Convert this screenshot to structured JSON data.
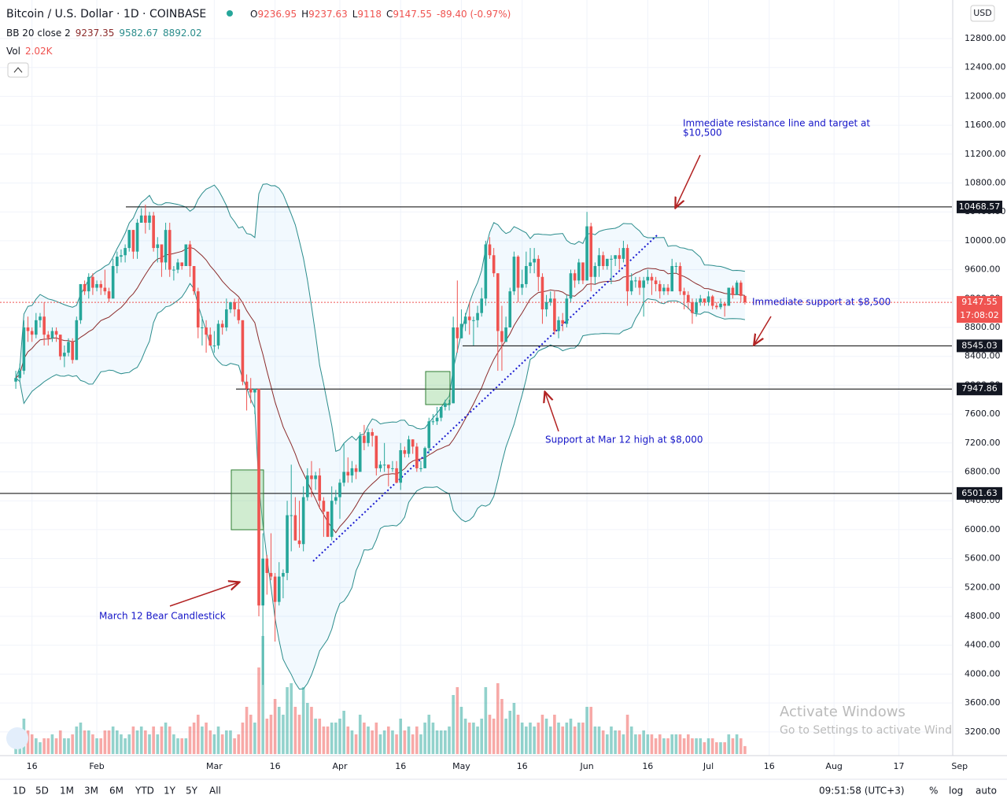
{
  "chart_data": {
    "type": "candlestick",
    "title": "Bitcoin / U.S. Dollar · 1D · COINBASE",
    "ohlc_labels": [
      "O",
      "H",
      "L",
      "C"
    ],
    "change": "-89.40 (-0.97%)",
    "indicator": {
      "name": "BB 20 close 2",
      "values": [
        9237.35,
        9582.67,
        8892.02
      ],
      "length": 20,
      "mult": 2,
      "upper_color": "#2a8c8c",
      "basis_color": "#8b2b2b",
      "fill": "rgba(33,150,243,0.06)"
    },
    "currency": "USD",
    "up_color": "#26a69a",
    "down_color": "#ef5350",
    "candles": [
      [
        8050,
        8200,
        7950,
        8100
      ],
      [
        8100,
        8300,
        8050,
        8200
      ],
      [
        8200,
        8900,
        8150,
        8800
      ],
      [
        8800,
        8950,
        8600,
        8750
      ],
      [
        8750,
        8800,
        8600,
        8700
      ],
      [
        8700,
        9000,
        8650,
        8900
      ],
      [
        8900,
        9000,
        8800,
        8950
      ],
      [
        8950,
        9150,
        8550,
        8700
      ],
      [
        8700,
        8750,
        8550,
        8650
      ],
      [
        8650,
        8800,
        8600,
        8750
      ],
      [
        8750,
        8800,
        8600,
        8700
      ],
      [
        8700,
        8700,
        8350,
        8400
      ],
      [
        8400,
        8550,
        8250,
        8450
      ],
      [
        8450,
        8650,
        8400,
        8600
      ],
      [
        8600,
        8650,
        8300,
        8350
      ],
      [
        8350,
        8950,
        8350,
        8900
      ],
      [
        8900,
        9400,
        8850,
        9400
      ],
      [
        9400,
        9450,
        9250,
        9300
      ],
      [
        9300,
        9550,
        9200,
        9500
      ],
      [
        9500,
        9550,
        9250,
        9350
      ],
      [
        9350,
        9450,
        9300,
        9400
      ],
      [
        9400,
        9450,
        9250,
        9350
      ],
      [
        9350,
        9600,
        9250,
        9300
      ],
      [
        9300,
        9350,
        9150,
        9200
      ],
      [
        9200,
        9750,
        9200,
        9650
      ],
      [
        9650,
        9850,
        9550,
        9780
      ],
      [
        9780,
        9880,
        9700,
        9800
      ],
      [
        9800,
        9950,
        9700,
        9900
      ],
      [
        9900,
        10150,
        9850,
        10150
      ],
      [
        10150,
        10150,
        9750,
        9850
      ],
      [
        9850,
        10300,
        9750,
        10250
      ],
      [
        10250,
        10450,
        10250,
        10350
      ],
      [
        10350,
        10500,
        10100,
        10250
      ],
      [
        10250,
        10400,
        10150,
        10350
      ],
      [
        10350,
        10400,
        9850,
        9900
      ],
      [
        9900,
        10050,
        9700,
        9950
      ],
      [
        9950,
        9950,
        9500,
        9700
      ],
      [
        9700,
        10250,
        9600,
        10150
      ],
      [
        10150,
        10250,
        9500,
        9600
      ],
      [
        9600,
        9650,
        9450,
        9600
      ],
      [
        9600,
        9750,
        9550,
        9700
      ],
      [
        9700,
        9700,
        9600,
        9650
      ],
      [
        9650,
        9950,
        9650,
        9950
      ],
      [
        9950,
        10000,
        9500,
        9650
      ],
      [
        9650,
        9650,
        9250,
        9300
      ],
      [
        9300,
        9350,
        8650,
        8800
      ],
      [
        8800,
        8950,
        8550,
        8800
      ],
      [
        8800,
        8900,
        8450,
        8700
      ],
      [
        8700,
        8800,
        8550,
        8550
      ],
      [
        8550,
        8750,
        8450,
        8550
      ],
      [
        8550,
        8900,
        8500,
        8850
      ],
      [
        8850,
        8900,
        8700,
        8800
      ],
      [
        8800,
        9200,
        8750,
        9050
      ],
      [
        9050,
        9150,
        9000,
        9150
      ],
      [
        9150,
        9200,
        8950,
        9050
      ],
      [
        9050,
        9200,
        8850,
        8900
      ],
      [
        8900,
        8900,
        8000,
        8050
      ],
      [
        8050,
        8150,
        7650,
        7950
      ],
      [
        7950,
        8100,
        7750,
        7900
      ],
      [
        7900,
        7950,
        7600,
        7950
      ],
      [
        7950,
        7950,
        4800,
        4950
      ],
      [
        4950,
        5950,
        3850,
        5600
      ],
      [
        5600,
        5650,
        5100,
        5400
      ],
      [
        5400,
        5950,
        5300,
        5350
      ],
      [
        5350,
        5400,
        4450,
        5000
      ],
      [
        5000,
        5550,
        4950,
        5350
      ],
      [
        5350,
        5450,
        5050,
        5400
      ],
      [
        5400,
        6400,
        5300,
        6200
      ],
      [
        6200,
        6900,
        5700,
        6200
      ],
      [
        6200,
        6450,
        5850,
        5850
      ],
      [
        5850,
        6400,
        5750,
        5800
      ],
      [
        5800,
        6600,
        5700,
        6450
      ],
      [
        6450,
        6850,
        6400,
        6750
      ],
      [
        6750,
        6950,
        6450,
        6700
      ],
      [
        6700,
        6800,
        6550,
        6750
      ],
      [
        6750,
        6850,
        6300,
        6400
      ],
      [
        6400,
        6450,
        5900,
        6250
      ],
      [
        6250,
        6250,
        5900,
        5900
      ],
      [
        5900,
        6600,
        5850,
        6400
      ],
      [
        6400,
        6550,
        6350,
        6450
      ],
      [
        6450,
        6700,
        6150,
        6650
      ],
      [
        6650,
        7200,
        6600,
        6800
      ],
      [
        6800,
        7000,
        6650,
        6750
      ],
      [
        6750,
        6950,
        6650,
        6850
      ],
      [
        6850,
        6900,
        6700,
        6800
      ],
      [
        6800,
        7350,
        6800,
        7300
      ],
      [
        7300,
        7450,
        7100,
        7200
      ],
      [
        7200,
        7400,
        7150,
        7350
      ],
      [
        7350,
        7400,
        7150,
        7300
      ],
      [
        7300,
        7300,
        6750,
        6850
      ],
      [
        6850,
        6950,
        6800,
        6900
      ],
      [
        6900,
        7200,
        6800,
        6900
      ],
      [
        6900,
        6900,
        6600,
        6850
      ],
      [
        6850,
        6950,
        6800,
        6850
      ],
      [
        6850,
        6950,
        6650,
        6650
      ],
      [
        6650,
        7200,
        6550,
        7100
      ],
      [
        7100,
        7150,
        7000,
        7050
      ],
      [
        7050,
        7300,
        7000,
        7250
      ],
      [
        7250,
        7250,
        7050,
        7150
      ],
      [
        7150,
        7200,
        6800,
        6850
      ],
      [
        6850,
        6950,
        6800,
        6850
      ],
      [
        6850,
        7150,
        6850,
        7130
      ],
      [
        7130,
        7550,
        7050,
        7500
      ],
      [
        7500,
        7600,
        7450,
        7500
      ],
      [
        7500,
        7700,
        7450,
        7550
      ],
      [
        7550,
        7700,
        7500,
        7700
      ],
      [
        7700,
        7800,
        7650,
        7750
      ],
      [
        7750,
        7800,
        7650,
        7750
      ],
      [
        7750,
        8950,
        7750,
        8800
      ],
      [
        8800,
        9450,
        8450,
        8650
      ],
      [
        8650,
        9050,
        8650,
        8850
      ],
      [
        8850,
        9000,
        8750,
        8950
      ],
      [
        8950,
        9150,
        8700,
        8900
      ],
      [
        8900,
        8950,
        8550,
        8900
      ],
      [
        8900,
        9100,
        8800,
        9000
      ],
      [
        9000,
        9350,
        8950,
        9200
      ],
      [
        9200,
        10000,
        9100,
        9950
      ],
      [
        9950,
        10050,
        9750,
        9800
      ],
      [
        9800,
        9900,
        9500,
        9550
      ],
      [
        9550,
        9550,
        8200,
        8750
      ],
      [
        8750,
        9100,
        8200,
        8600
      ],
      [
        8600,
        8950,
        8600,
        8800
      ],
      [
        8800,
        9350,
        8800,
        9300
      ],
      [
        9300,
        9850,
        9250,
        9780
      ],
      [
        9780,
        9800,
        9150,
        9350
      ],
      [
        9350,
        9600,
        9250,
        9400
      ],
      [
        9400,
        9850,
        9350,
        9650
      ],
      [
        9650,
        9900,
        9550,
        9700
      ],
      [
        9700,
        9900,
        9550,
        9750
      ],
      [
        9750,
        9800,
        9300,
        9500
      ],
      [
        9500,
        9550,
        8850,
        9050
      ],
      [
        9050,
        9250,
        8950,
        9150
      ],
      [
        9150,
        9300,
        9100,
        9200
      ],
      [
        9200,
        9300,
        8700,
        8750
      ],
      [
        8750,
        8950,
        8650,
        8900
      ],
      [
        8900,
        9000,
        8750,
        8850
      ],
      [
        8850,
        9250,
        8800,
        9200
      ],
      [
        9200,
        9600,
        9150,
        9550
      ],
      [
        9550,
        9600,
        9350,
        9450
      ],
      [
        9450,
        9750,
        9400,
        9700
      ],
      [
        9700,
        9700,
        9400,
        9450
      ],
      [
        9450,
        10400,
        9450,
        10200
      ],
      [
        10200,
        10250,
        9300,
        9500
      ],
      [
        9500,
        9700,
        9400,
        9650
      ],
      [
        9650,
        9900,
        9500,
        9800
      ],
      [
        9800,
        9850,
        9600,
        9650
      ],
      [
        9650,
        9750,
        9600,
        9750
      ],
      [
        9750,
        9800,
        9400,
        9750
      ],
      [
        9750,
        9800,
        9650,
        9800
      ],
      [
        9800,
        9900,
        9600,
        9750
      ],
      [
        9750,
        10000,
        9700,
        9900
      ],
      [
        9900,
        9950,
        9100,
        9300
      ],
      [
        9300,
        9550,
        9250,
        9450
      ],
      [
        9450,
        9500,
        9350,
        9450
      ],
      [
        9450,
        9500,
        9250,
        9350
      ],
      [
        9350,
        9500,
        8950,
        9450
      ],
      [
        9450,
        9600,
        9400,
        9500
      ],
      [
        9500,
        9550,
        9250,
        9450
      ],
      [
        9450,
        9500,
        9300,
        9400
      ],
      [
        9400,
        9450,
        9200,
        9300
      ],
      [
        9300,
        9400,
        9250,
        9350
      ],
      [
        9350,
        9400,
        9250,
        9300
      ],
      [
        9300,
        9750,
        9300,
        9650
      ],
      [
        9650,
        9700,
        9550,
        9650
      ],
      [
        9650,
        9700,
        9250,
        9300
      ],
      [
        9300,
        9350,
        9050,
        9250
      ],
      [
        9250,
        9300,
        9050,
        9150
      ],
      [
        9150,
        9200,
        8850,
        9000
      ],
      [
        9000,
        9200,
        8950,
        9150
      ],
      [
        9150,
        9250,
        9100,
        9200
      ],
      [
        9200,
        9200,
        9100,
        9150
      ],
      [
        9150,
        9300,
        9100,
        9230
      ],
      [
        9230,
        9250,
        9050,
        9100
      ],
      [
        9100,
        9150,
        9050,
        9080
      ],
      [
        9080,
        9200,
        9050,
        9130
      ],
      [
        9130,
        9150,
        8950,
        9100
      ],
      [
        9100,
        9350,
        9100,
        9350
      ],
      [
        9350,
        9380,
        9200,
        9250
      ],
      [
        9250,
        9450,
        9250,
        9420
      ],
      [
        9420,
        9450,
        9150,
        9236.95
      ],
      [
        9236.95,
        9237.63,
        9118,
        9147.55
      ]
    ],
    "volume": {
      "name": "Vol",
      "last_label": "2.02K",
      "values": [
        5,
        6,
        9,
        6,
        5,
        4,
        3,
        4,
        4,
        5,
        4,
        6,
        4,
        4,
        5,
        7,
        8,
        6,
        6,
        5,
        4,
        4,
        6,
        6,
        7,
        6,
        5,
        4,
        5,
        7,
        6,
        7,
        6,
        5,
        7,
        5,
        7,
        8,
        7,
        5,
        4,
        4,
        4,
        7,
        8,
        10,
        7,
        8,
        6,
        5,
        7,
        5,
        6,
        6,
        4,
        5,
        8,
        12,
        10,
        8,
        22,
        30,
        9,
        10,
        14,
        12,
        10,
        17,
        18,
        12,
        10,
        17,
        13,
        12,
        9,
        9,
        7,
        7,
        8,
        8,
        9,
        11,
        7,
        6,
        5,
        10,
        8,
        7,
        6,
        8,
        5,
        6,
        7,
        6,
        5,
        9,
        6,
        7,
        5,
        7,
        5,
        8,
        10,
        8,
        6,
        6,
        6,
        7,
        15,
        17,
        12,
        9,
        8,
        8,
        7,
        9,
        17,
        10,
        9,
        18,
        14,
        9,
        11,
        13,
        10,
        8,
        7,
        8,
        7,
        8,
        10,
        9,
        7,
        10,
        8,
        7,
        8,
        9,
        7,
        8,
        8,
        12,
        12,
        7,
        7,
        6,
        5,
        7,
        6,
        6,
        5,
        10,
        7,
        5,
        5,
        6,
        5,
        5,
        4,
        5,
        4,
        4,
        5,
        5,
        5,
        4,
        5,
        4,
        4,
        4,
        3,
        4,
        4,
        3,
        3,
        3,
        5,
        4,
        5,
        4,
        2.02
      ]
    },
    "xlim": [
      -3.9,
      231.1
    ],
    "xticks": [
      {
        "value": 4,
        "label": "16"
      },
      {
        "value": 20,
        "label": "Feb"
      },
      {
        "value": 49,
        "label": "Mar"
      },
      {
        "value": 64,
        "label": "16"
      },
      {
        "value": 80,
        "label": "Apr"
      },
      {
        "value": 95,
        "label": "16"
      },
      {
        "value": 110,
        "label": "May"
      },
      {
        "value": 125,
        "label": "16"
      },
      {
        "value": 141,
        "label": "Jun"
      },
      {
        "value": 156,
        "label": "16"
      },
      {
        "value": 171,
        "label": "Jul"
      },
      {
        "value": 186,
        "label": "16"
      },
      {
        "value": 202,
        "label": "Aug"
      },
      {
        "value": 218,
        "label": "17"
      },
      {
        "value": 233,
        "label": "Sep"
      }
    ],
    "ylim": [
      2871,
      13334
    ],
    "yticks": [
      {
        "value": 3200,
        "label": "3200.00"
      },
      {
        "value": 3600,
        "label": "3600.00"
      },
      {
        "value": 4000,
        "label": "4000.00"
      },
      {
        "value": 4400,
        "label": "4400.00"
      },
      {
        "value": 4800,
        "label": "4800.00"
      },
      {
        "value": 5200,
        "label": "5200.00"
      },
      {
        "value": 5600,
        "label": "5600.00"
      },
      {
        "value": 6000,
        "label": "6000.00"
      },
      {
        "value": 6400,
        "label": "6400.00"
      },
      {
        "value": 6800,
        "label": "6800.00"
      },
      {
        "value": 7200,
        "label": "7200.00"
      },
      {
        "value": 7600,
        "label": "7600.00"
      },
      {
        "value": 8000,
        "label": "8000.00"
      },
      {
        "value": 8400,
        "label": "8400.00"
      },
      {
        "value": 8800,
        "label": "8800.00"
      },
      {
        "value": 9200,
        "label": "9200.00"
      },
      {
        "value": 9600,
        "label": "9600.00"
      },
      {
        "value": 10000,
        "label": "10000.00"
      },
      {
        "value": 10400,
        "label": "10400.00"
      },
      {
        "value": 10800,
        "label": "10800.00"
      },
      {
        "value": 11200,
        "label": "11200.00"
      },
      {
        "value": 11600,
        "label": "11600.00"
      },
      {
        "value": 12000,
        "label": "12000.00"
      },
      {
        "value": 12400,
        "label": "12400.00"
      },
      {
        "value": 12800,
        "label": "12800.00"
      }
    ],
    "grid": true,
    "levels": [
      10468.57,
      8545.03,
      7947.86,
      6501.63
    ],
    "countdown": "17:08:02",
    "annotations": [
      [
        "Immediate resistance line and target at",
        "$10,500"
      ],
      [
        "Immediate support at $8,500"
      ],
      [
        "Support at Mar 12 high at $8,000"
      ],
      [
        "March 12 Bear Candlestick"
      ]
    ]
  },
  "toolbar": {
    "ranges": [
      "1D",
      "5D",
      "1M",
      "3M",
      "6M",
      "YTD",
      "1Y",
      "5Y",
      "All"
    ],
    "time": "09:51:58 (UTC+3)",
    "options": [
      "%",
      "log",
      "auto"
    ]
  },
  "watermark": [
    "Activate Windows",
    "Go to Settings to activate Windows."
  ]
}
